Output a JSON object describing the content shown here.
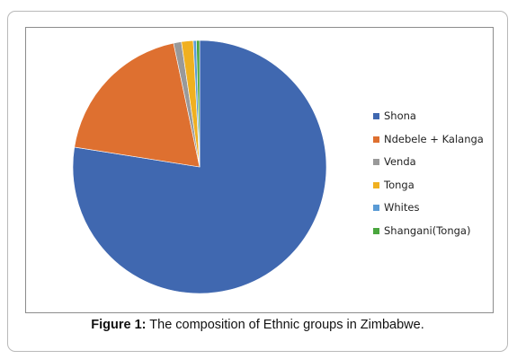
{
  "chart_data": {
    "type": "pie",
    "categories": [
      "Shona",
      "Ndebele + Kalanga",
      "Venda",
      "Tonga",
      "Whites",
      "Shangani(Tonga)"
    ],
    "values": [
      77.5,
      19.2,
      1.0,
      1.5,
      0.4,
      0.4
    ],
    "colors": [
      "#4068b0",
      "#de7030",
      "#999999",
      "#f0b020",
      "#5a9bd5",
      "#4aa63e"
    ],
    "legend_position": "right",
    "start_angle_deg": 0,
    "direction": "clockwise"
  },
  "caption": {
    "prefix": "Figure 1:",
    "text": " The composition of Ethnic groups in Zimbabwe."
  }
}
